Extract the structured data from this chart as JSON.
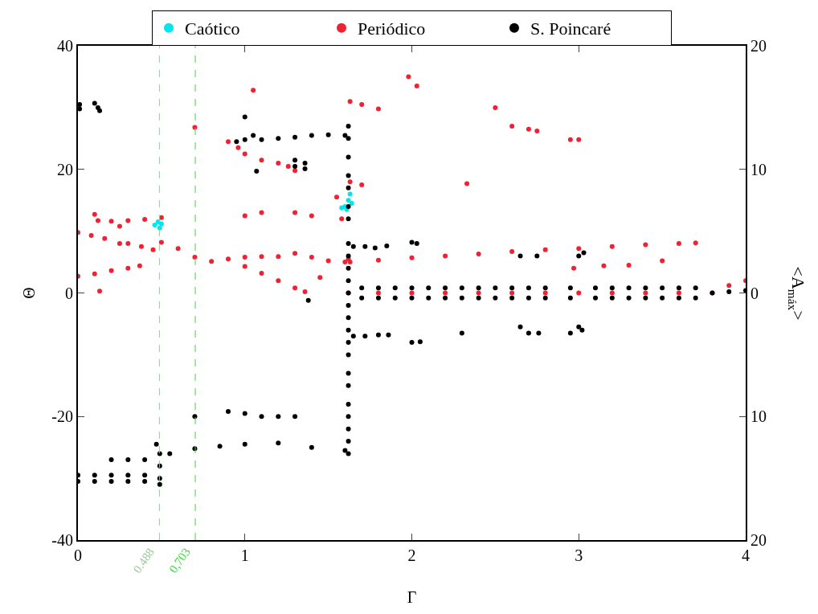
{
  "chart_data": {
    "type": "scatter",
    "xlabel": "Γ",
    "ylabel": "Θ",
    "y2label": "<A$_{máx}$>",
    "xlim": [
      0,
      4
    ],
    "xticks": [
      0,
      1,
      2,
      3,
      4
    ],
    "ylim": [
      -40,
      40
    ],
    "yticks": [
      -40,
      -20,
      0,
      20,
      40
    ],
    "y2lim": [
      -20,
      20
    ],
    "y2ticks": [
      {
        "value": -20,
        "label": "20"
      },
      {
        "value": -10,
        "label": "10"
      },
      0,
      10,
      20
    ],
    "legend": "top",
    "marker": "circle",
    "ref_lines": [
      {
        "axis": "x",
        "value": 0.488,
        "label": "0.488",
        "color": "#99cc99",
        "line_style": "dashed"
      },
      {
        "axis": "x",
        "value": 0.703,
        "label": "0,703",
        "color": "#33dd33",
        "line_style": "dashed"
      }
    ],
    "series": [
      {
        "name": "Caótico",
        "color": "#00e5ee",
        "x": [
          0.46,
          0.48,
          0.5,
          0.49,
          1.58,
          1.6,
          1.61,
          1.62,
          1.63,
          1.64
        ],
        "values": [
          11,
          11.5,
          11.2,
          10.5,
          13.8,
          14,
          13.5,
          15,
          16,
          14.5
        ]
      },
      {
        "name": "Periódico",
        "color": "#ee2233",
        "x": [
          0,
          0.1,
          0.2,
          0.3,
          0.37,
          0,
          0.08,
          0.16,
          0.25,
          0.3,
          0.38,
          0.45,
          0.1,
          0.12,
          0.2,
          0.3,
          0.4,
          0.5,
          0.25,
          0.5,
          0.6,
          0.7,
          0.8,
          0.9,
          1.0,
          1.1,
          1.2,
          1.3,
          1.4,
          1.5,
          1.6,
          1.62,
          1.0,
          1.1,
          1.2,
          1.3,
          1.36,
          1.45,
          0.13,
          0.9,
          0.96,
          1.0,
          1.1,
          1.2,
          1.26,
          1.3,
          1.05,
          0.7,
          1.0,
          1.1,
          1.3,
          1.4,
          1.63,
          1.7,
          1.8,
          1.98,
          2.03,
          2.5,
          2.6,
          2.7,
          2.75,
          2.95,
          3.0,
          2.33,
          1.63,
          1.8,
          2.0,
          2.2,
          2.4,
          2.6,
          2.8,
          3.0,
          3.2,
          3.4,
          3.6,
          3.7,
          1.62,
          1.8,
          2.0,
          2.2,
          2.4,
          2.6,
          2.8,
          3.0,
          3.2,
          3.4,
          3.6,
          3.8,
          3.9,
          4.0,
          2.97,
          3.15,
          3.3,
          3.5,
          1.55,
          1.58,
          1.63,
          1.7
        ],
        "values": [
          2.7,
          3.1,
          3.6,
          4.0,
          4.4,
          9.8,
          9.3,
          8.8,
          8.0,
          8.0,
          7.5,
          7.0,
          12.7,
          11.7,
          11.6,
          11.7,
          11.9,
          12.2,
          10.8,
          8.2,
          7.2,
          5.8,
          5.1,
          5.5,
          5.8,
          5.9,
          5.9,
          6.4,
          5.8,
          5.2,
          5.0,
          5.5,
          4.3,
          3.2,
          2.0,
          0.8,
          0.2,
          2.5,
          0.3,
          24.5,
          23.5,
          22.5,
          21.5,
          21,
          20.5,
          19.8,
          32.8,
          26.8,
          12.5,
          13,
          13,
          12.5,
          31,
          30.5,
          29.8,
          35,
          33.5,
          30,
          27,
          26.5,
          26.2,
          24.8,
          24.8,
          17.7,
          5,
          5.3,
          5.7,
          6.0,
          6.3,
          6.7,
          7.0,
          7.2,
          7.5,
          7.8,
          8.0,
          8.1,
          0,
          0,
          0,
          0,
          0,
          0,
          0,
          0,
          0,
          0,
          0,
          0,
          1.2,
          2,
          4,
          4.4,
          4.5,
          5.2,
          15.5,
          12,
          18,
          17.5
        ]
      },
      {
        "name": "S. Poincaré",
        "color": "#000000",
        "x": [
          0.01,
          0.01,
          0.1,
          0.12,
          0.13,
          0.95,
          1.0,
          1.05,
          1.1,
          1.2,
          1.3,
          1.4,
          1.5,
          1.6,
          1.0,
          1.07,
          1.3,
          1.3,
          1.36,
          1.36,
          1.62,
          1.62,
          1.62,
          1.62,
          1.62,
          1.62,
          1.62,
          1.62,
          1.62,
          1.62,
          1.62,
          1.62,
          1.62,
          1.62,
          1.62,
          1.62,
          1.62,
          1.62,
          1.62,
          1.62,
          1.62,
          1.62,
          1.62,
          1.62,
          1.7,
          1.8,
          1.9,
          2.0,
          2.1,
          2.2,
          2.3,
          2.4,
          2.5,
          2.6,
          2.7,
          2.8,
          2.95,
          3.1,
          3.2,
          3.3,
          3.4,
          3.5,
          3.6,
          3.7,
          1.7,
          1.8,
          1.9,
          2.0,
          2.1,
          2.2,
          2.3,
          2.4,
          2.5,
          2.6,
          2.7,
          2.8,
          2.95,
          3.1,
          3.2,
          3.3,
          3.4,
          3.5,
          3.6,
          3.7,
          1.65,
          1.72,
          1.78,
          1.85,
          2.0,
          2.03,
          1.65,
          1.72,
          1.8,
          1.86,
          2.0,
          2.05,
          2.3,
          2.65,
          2.7,
          2.76,
          2.95,
          3.0,
          3.02,
          2.65,
          2.75,
          3.0,
          3.03,
          3.8,
          3.9,
          4.0,
          0.0,
          0.1,
          0.2,
          0.3,
          0.4,
          0.0,
          0.1,
          0.2,
          0.3,
          0.4,
          0.2,
          0.3,
          0.4,
          0.47,
          0.49,
          0.49,
          0.49,
          0.49,
          0.55,
          0.7,
          0.85,
          1.0,
          1.2,
          1.4,
          1.6,
          0.9,
          1.0,
          1.1,
          1.2,
          1.3,
          0.7,
          1.38
        ],
        "values": [
          30.5,
          29.8,
          30.7,
          30,
          29.5,
          24.5,
          24.8,
          25.5,
          24.8,
          25,
          25.2,
          25.5,
          25.6,
          25.5,
          28.5,
          19.7,
          21.5,
          20.5,
          21,
          20.1,
          27,
          25,
          22,
          19,
          17,
          14,
          12,
          8,
          6,
          4,
          2,
          0,
          -2,
          -4,
          -6,
          -8,
          -10,
          -13,
          -15,
          -18,
          -20,
          -22,
          -24,
          -26,
          0.8,
          0.8,
          0.8,
          0.8,
          0.8,
          0.8,
          0.8,
          0.8,
          0.8,
          0.8,
          0.8,
          0.8,
          0.8,
          0.8,
          0.8,
          0.8,
          0.8,
          0.8,
          0.8,
          0.8,
          -0.8,
          -0.8,
          -0.8,
          -0.8,
          -0.8,
          -0.8,
          -0.8,
          -0.8,
          -0.8,
          -0.8,
          -0.8,
          -0.8,
          -0.8,
          -0.8,
          -0.8,
          -0.8,
          -0.8,
          -0.8,
          -0.8,
          -0.8,
          7.5,
          7.5,
          7.3,
          7.6,
          8.2,
          8.0,
          -7,
          -7,
          -6.8,
          -6.8,
          -8,
          -7.9,
          -6.5,
          -5.5,
          -6.5,
          -6.5,
          -6.5,
          -5.5,
          -6,
          6.0,
          6.0,
          6.0,
          6.5,
          0,
          0.2,
          0.4,
          -30.5,
          -30.5,
          -30.5,
          -30.5,
          -30.5,
          -29.5,
          -29.5,
          -29.5,
          -29.5,
          -29.5,
          -27,
          -27,
          -27,
          -24.5,
          -26,
          -28,
          -30,
          -31,
          -26,
          -25.2,
          -24.8,
          -24.5,
          -24.3,
          -25,
          -25.5,
          -19.2,
          -19.5,
          -20,
          -20,
          -20,
          -20,
          -1.2
        ]
      }
    ]
  }
}
